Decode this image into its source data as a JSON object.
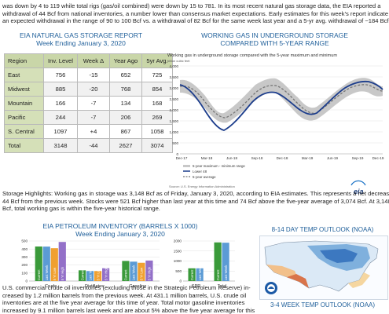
{
  "top_paragraph": {
    "lines": [
      "was down by 4 to 119 while total rigs (gas/oil combined) were down by 15 to 781. In its most recent natural gas storage data, the EIA reported a",
      "withdrawal of 44 Bcf from national inventories, a number lower than consensus market expectations. Early estimates for this week's report indicate",
      "an expected withdrawal in the range of 90 to 100 Bcf vs. a withdrawal of 82 Bcf for the same week last year and a 5-yr avg. withdrawal of ~184 Bcf."
    ]
  },
  "storage_report": {
    "title": "EIA NATURAL GAS STORAGE REPORT",
    "subtitle": "Week Ending January 3, 2020",
    "headers": [
      "Region",
      "Inv. Level",
      "Week Δ",
      "Year Ago",
      "5yr Avg."
    ],
    "rows": [
      [
        "East",
        "756",
        "-15",
        "652",
        "725"
      ],
      [
        "Midwest",
        "885",
        "-20",
        "768",
        "854"
      ],
      [
        "Mountain",
        "166",
        "-7",
        "134",
        "168"
      ],
      [
        "Pacific",
        "244",
        "-7",
        "206",
        "269"
      ],
      [
        "S. Central",
        "1097",
        "+4",
        "867",
        "1058"
      ],
      [
        "Total",
        "3148",
        "-44",
        "2627",
        "3074"
      ]
    ]
  },
  "working_gas_chart": {
    "title_line1": "WORKING GAS IN UNDERGROUND STORAGE",
    "title_line2": "COMPARED WITH 5-YEAR RANGE",
    "inner_title": "Working gas in underground storage compared with the 5-year maximum and minimum",
    "unit": "billion cubic feet",
    "y_ticks": [
      "4,000",
      "3,500",
      "3,000",
      "2,500",
      "2,000",
      "1,500",
      "1,000",
      "500",
      "0"
    ],
    "x_ticks": [
      "Dec-17",
      "Mar-18",
      "Jun-18",
      "Sep-18",
      "Dec-18",
      "Mar-19",
      "Jun-19",
      "Sep-19",
      "Dec-19"
    ],
    "legend": [
      "5-year maximum - minimum range",
      "Lower 48",
      "5-year average"
    ],
    "source": "Source: U.S. Energy Information Administration",
    "logo": "eia",
    "colors": {
      "range": "#c8c8c8",
      "lower48": "#1c3d8c",
      "avg": "#777777"
    }
  },
  "storage_highlights": {
    "lines": [
      "Storage Highlights: Working gas in storage was 3,148 Bcf as of Friday, January 3, 2020, according to EIA estimates. This represents a net decrease of",
      "44 Bcf from the previous week. Stocks were 521 Bcf higher than last year at this time and 74 Bcf above the five-year average of 3,074 Bcf. At 3,148",
      "Bcf, total working gas is within the five-year historical range."
    ]
  },
  "petroleum": {
    "title": "EIA PETROLEUM INVENTORY (BARRELS X 1000)",
    "subtitle": "Week Ending January 3, 2020",
    "chart_data": [
      {
        "type": "bar",
        "categories": [
          "Crude",
          "Distillates",
          "Gasoline"
        ],
        "series": [
          {
            "name": "Current",
            "values": [
              431,
              134,
              251
            ],
            "color": "#3a9a3a"
          },
          {
            "name": "Last Week",
            "values": [
              430,
              125,
              242
            ],
            "color": "#5b9bd5"
          },
          {
            "name": "5 Yr Low",
            "values": [
              410,
              125,
              228
            ],
            "color": "#f0a030"
          },
          {
            "name": "5 Yr High",
            "values": [
              488,
              160,
              256
            ],
            "color": "#9370c8"
          }
        ],
        "ylim": [
          0,
          500
        ],
        "yticks": [
          "0",
          "100",
          "200",
          "300",
          "400",
          "500"
        ]
      },
      {
        "type": "bar",
        "categories": [
          "SPR",
          "Total"
        ],
        "series": [
          {
            "name": "Current",
            "values": [
              635,
              1930
            ],
            "color": "#3a9a3a"
          },
          {
            "name": "Last Week",
            "values": [
              635,
              1915
            ],
            "color": "#5b9bd5"
          }
        ],
        "ylim": [
          0,
          2000
        ],
        "yticks": [
          "0",
          "500",
          "1000",
          "1500",
          "2000"
        ]
      }
    ]
  },
  "petroleum_paragraph": {
    "lines": [
      "U.S. commercial crude oil inventories (excluding those in the Strategic Petroleum Reserve) in-",
      "creased by 1.2 million barrels from the previous week. At 431.1 million barrels, U.S. crude oil",
      "inventories are at the five year average for this time of year. Total motor gasoline inventories",
      "increased by 9.1 million barrels last week and are about 5% above the five year average for this"
    ]
  },
  "outlook_8_14": {
    "title": "8-14 DAY TEMP OUTLOOK (NOAA)"
  },
  "outlook_3_4": {
    "title": "3-4 WEEK TEMP OUTLOOK (NOAA)"
  }
}
